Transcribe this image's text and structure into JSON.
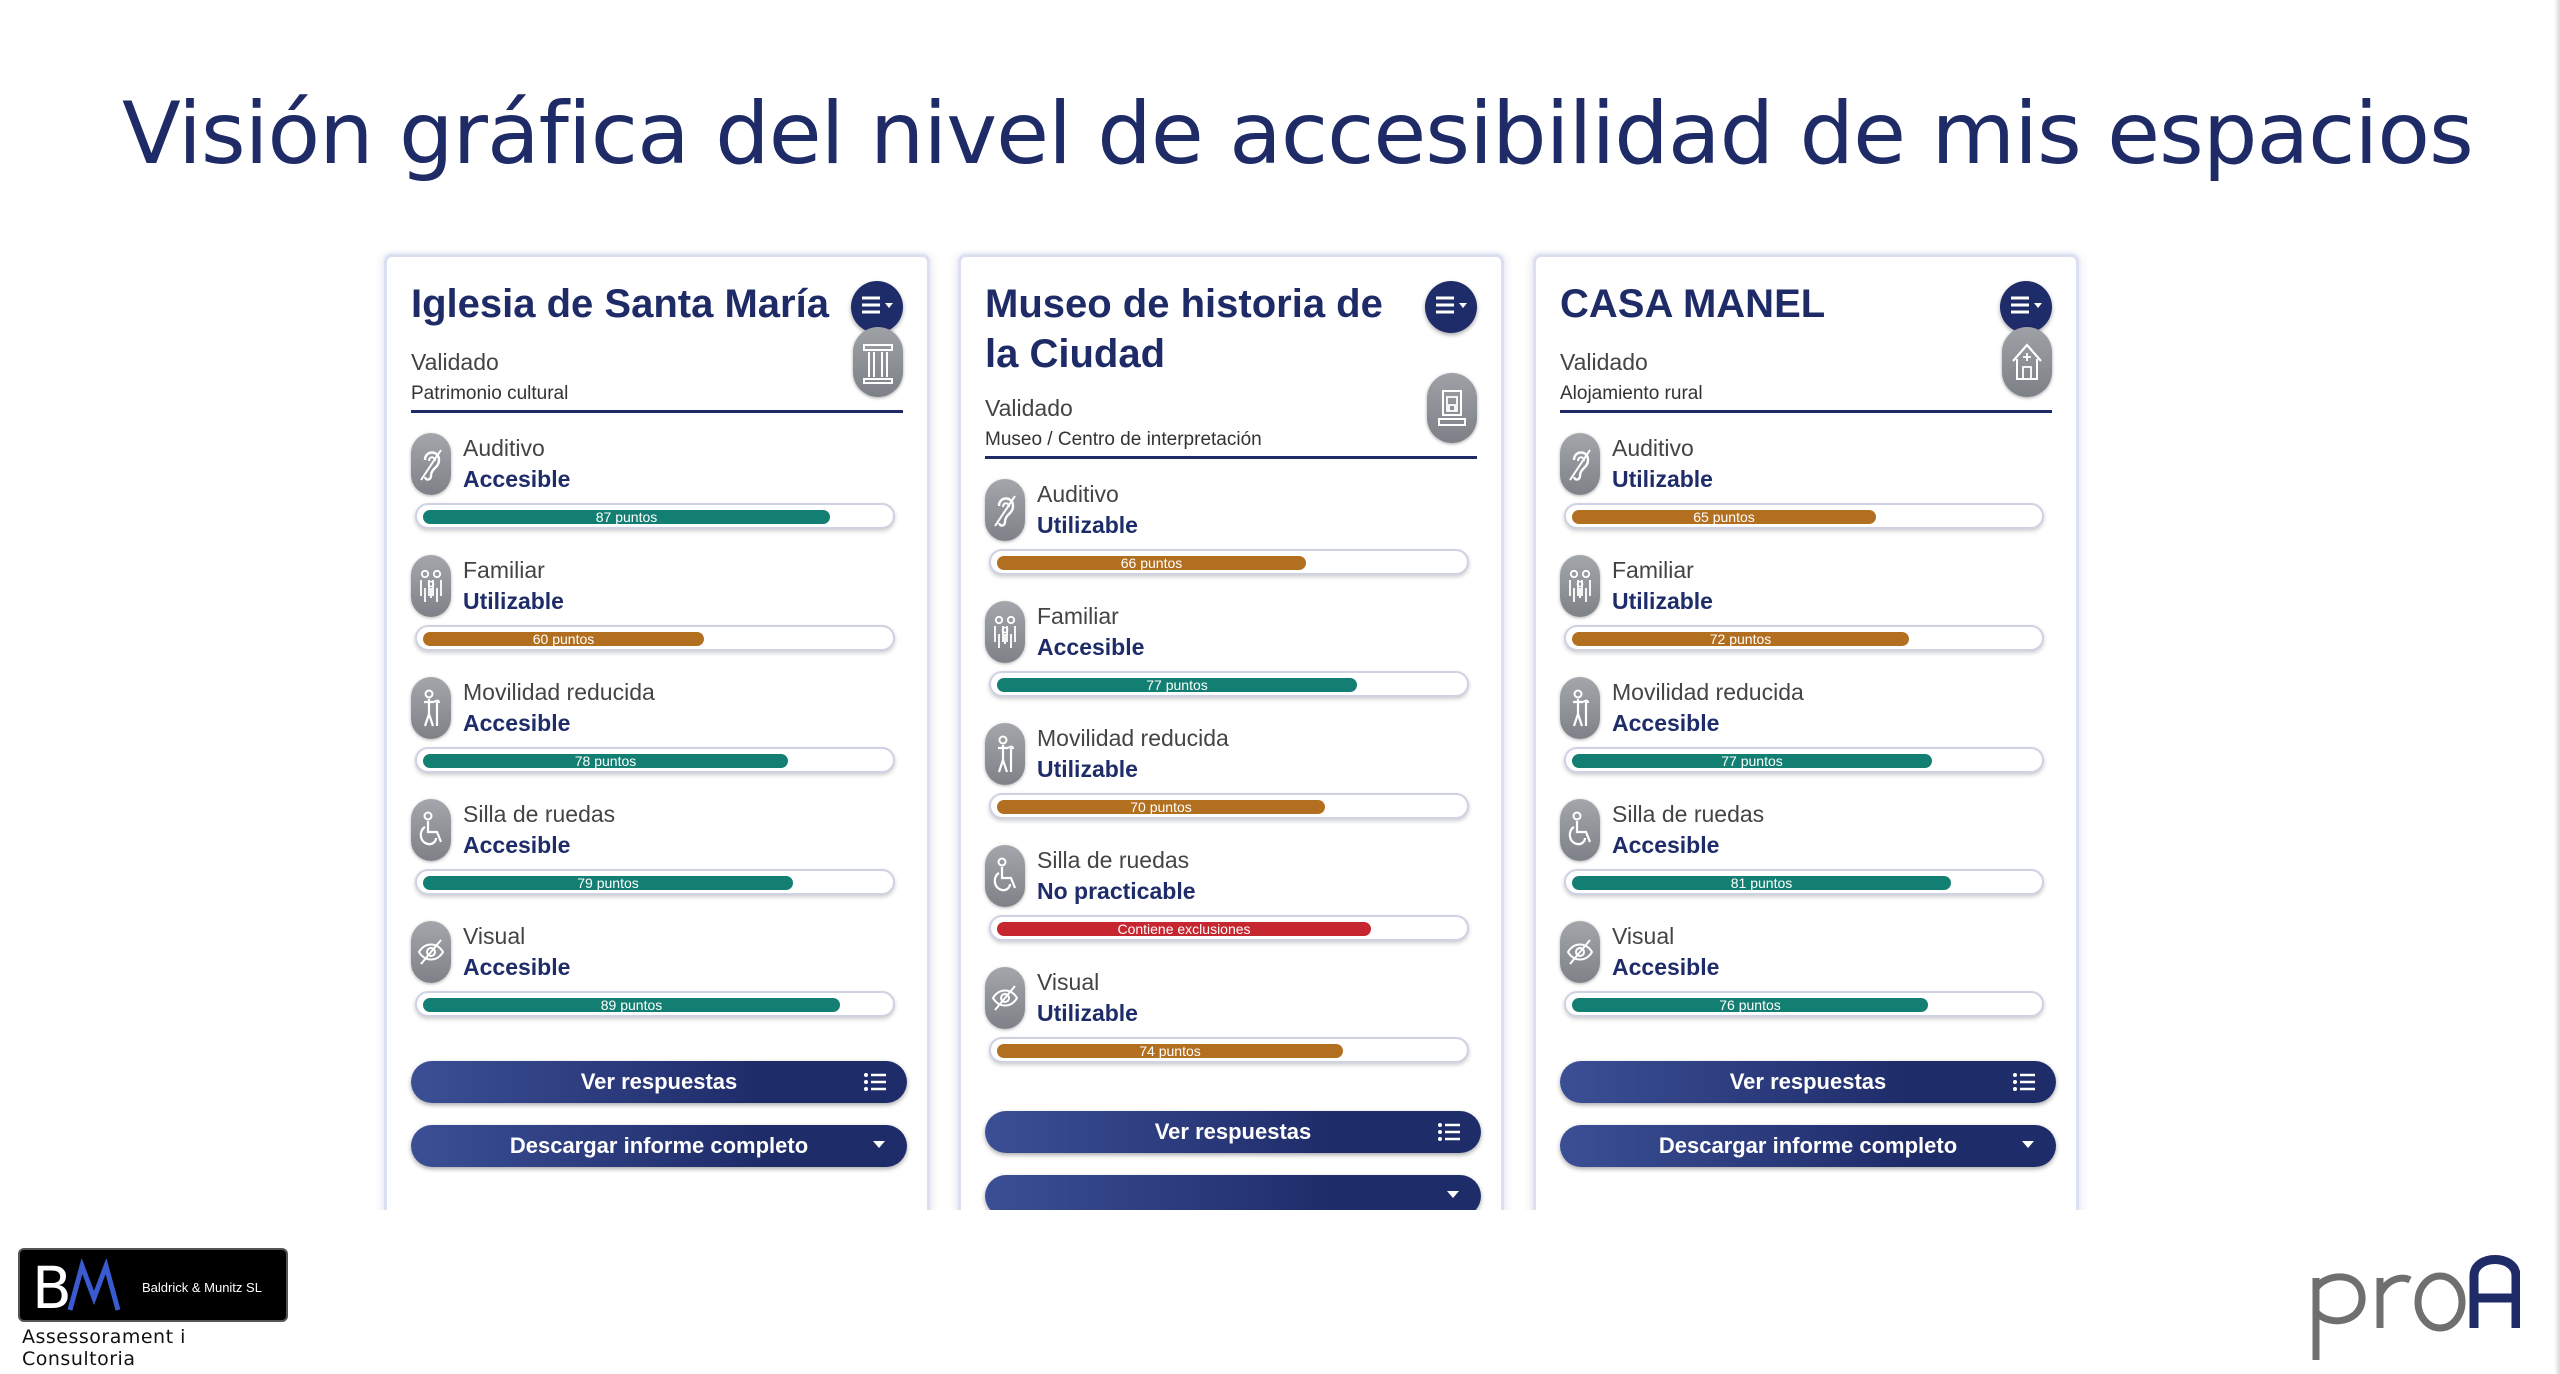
{
  "slide": {
    "title": "Visión gráfica del nivel de accesibilidad de mis espacios"
  },
  "colors": {
    "accessible": "#137f72",
    "usable": "#b26f1f",
    "not_practicable": "#c62630",
    "brand_navy": "#1f2c6a"
  },
  "cards": [
    {
      "title": "Iglesia de Santa María",
      "status": "Validado",
      "type": "Patrimonio cultural",
      "type_icon": "column-icon",
      "categories": [
        {
          "name": "Auditivo",
          "level": "Accesible",
          "label": "87 puntos",
          "score": 87,
          "kind": "accessible",
          "icon": "ear-icon"
        },
        {
          "name": "Familiar",
          "level": "Utilizable",
          "label": "60 puntos",
          "score": 60,
          "kind": "usable",
          "icon": "family-icon"
        },
        {
          "name": "Movilidad reducida",
          "level": "Accesible",
          "label": "78 puntos",
          "score": 78,
          "kind": "accessible",
          "icon": "person-cane-icon"
        },
        {
          "name": "Silla de ruedas",
          "level": "Accesible",
          "label": "79 puntos",
          "score": 79,
          "kind": "accessible",
          "icon": "wheelchair-icon"
        },
        {
          "name": "Visual",
          "level": "Accesible",
          "label": "89 puntos",
          "score": 89,
          "kind": "accessible",
          "icon": "eye-slash-icon"
        }
      ],
      "view_answers": "Ver respuestas",
      "download": "Descargar informe completo"
    },
    {
      "title": "Museo de historia de la Ciudad",
      "status": "Validado",
      "type": "Museo / Centro de interpretación",
      "type_icon": "museum-icon",
      "categories": [
        {
          "name": "Auditivo",
          "level": "Utilizable",
          "label": "66 puntos",
          "score": 66,
          "kind": "usable",
          "icon": "ear-icon"
        },
        {
          "name": "Familiar",
          "level": "Accesible",
          "label": "77 puntos",
          "score": 77,
          "kind": "accessible",
          "icon": "family-icon"
        },
        {
          "name": "Movilidad reducida",
          "level": "Utilizable",
          "label": "70 puntos",
          "score": 70,
          "kind": "usable",
          "icon": "person-cane-icon"
        },
        {
          "name": "Silla de ruedas",
          "level": "No practicable",
          "label": "Contiene exclusiones",
          "score": 80,
          "kind": "not_practicable",
          "icon": "wheelchair-icon"
        },
        {
          "name": "Visual",
          "level": "Utilizable",
          "label": "74 puntos",
          "score": 74,
          "kind": "usable",
          "icon": "eye-slash-icon"
        }
      ],
      "view_answers": "Ver respuestas",
      "download": ""
    },
    {
      "title": "CASA MANEL",
      "status": "Validado",
      "type": "Alojamiento rural",
      "type_icon": "house-icon",
      "categories": [
        {
          "name": "Auditivo",
          "level": "Utilizable",
          "label": "65 puntos",
          "score": 65,
          "kind": "usable",
          "icon": "ear-icon"
        },
        {
          "name": "Familiar",
          "level": "Utilizable",
          "label": "72 puntos",
          "score": 72,
          "kind": "usable",
          "icon": "family-icon"
        },
        {
          "name": "Movilidad reducida",
          "level": "Accesible",
          "label": "77 puntos",
          "score": 77,
          "kind": "accessible",
          "icon": "person-cane-icon"
        },
        {
          "name": "Silla de ruedas",
          "level": "Accesible",
          "label": "81 puntos",
          "score": 81,
          "kind": "accessible",
          "icon": "wheelchair-icon"
        },
        {
          "name": "Visual",
          "level": "Accesible",
          "label": "76 puntos",
          "score": 76,
          "kind": "accessible",
          "icon": "eye-slash-icon"
        }
      ],
      "view_answers": "Ver respuestas",
      "download": "Descargar informe completo"
    }
  ],
  "footer": {
    "company_name": "Baldrick & Munitz SL",
    "company_tagline": "Assessorament i Consultoria",
    "company_logo_letters": "BM",
    "partner_logo": "proa"
  }
}
